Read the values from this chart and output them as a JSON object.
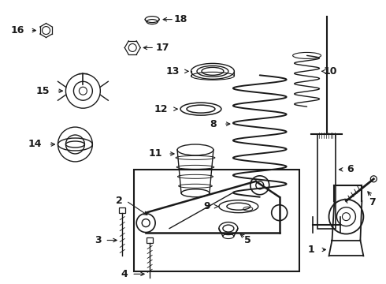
{
  "background_color": "#ffffff",
  "line_color": "#1a1a1a",
  "figsize": [
    4.9,
    3.6
  ],
  "dpi": 100,
  "label_fontsize": 9,
  "label_bold": true
}
